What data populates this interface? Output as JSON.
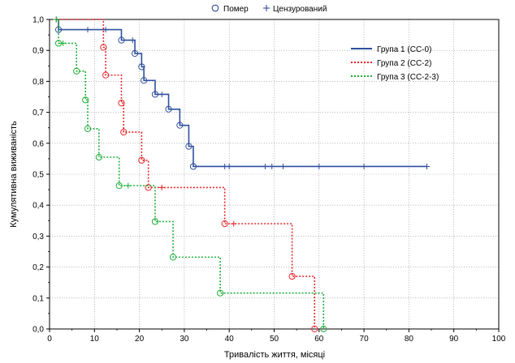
{
  "chart_data": {
    "type": "line",
    "step": true,
    "xlabel": "Тривалість життя, місяці",
    "ylabel": "Кумулятивна виживаність",
    "xlim": [
      0,
      100
    ],
    "ylim": [
      0,
      1
    ],
    "xticks": [
      "0",
      "10",
      "20",
      "30",
      "40",
      "50",
      "60",
      "70",
      "80",
      "90",
      "100"
    ],
    "yticks": [
      "0,0",
      "0,1",
      "0,2",
      "0,3",
      "0,4",
      "0,5",
      "0,6",
      "0,7",
      "0,8",
      "0,9",
      "1,0"
    ],
    "grid": true,
    "top_legend": {
      "death_label": "Помер",
      "censored_label": "Цензурований"
    },
    "legend_position": "top-right",
    "series": [
      {
        "name": "Група 1 (СС-0)",
        "color": "#2f4f9e",
        "dash": "solid",
        "start": 1.0,
        "steps": [
          [
            2,
            0.967
          ],
          [
            16,
            0.933
          ],
          [
            19,
            0.89
          ],
          [
            20.5,
            0.847
          ],
          [
            21,
            0.803
          ],
          [
            23.5,
            0.758
          ],
          [
            26.5,
            0.71
          ],
          [
            29,
            0.658
          ],
          [
            31,
            0.59
          ],
          [
            32,
            0.525
          ]
        ],
        "end_x": 84,
        "censored": [
          [
            1.5,
            1.0
          ],
          [
            8.5,
            0.967
          ],
          [
            12.5,
            0.967
          ],
          [
            18.5,
            0.933
          ],
          [
            25,
            0.758
          ],
          [
            39,
            0.525
          ],
          [
            40,
            0.525
          ],
          [
            48,
            0.525
          ],
          [
            49.5,
            0.525
          ],
          [
            52,
            0.525
          ],
          [
            60,
            0.525
          ],
          [
            70,
            0.525
          ],
          [
            84,
            0.525
          ]
        ]
      },
      {
        "name": "Група 2 (СС-2)",
        "color": "#e8262b",
        "dash": "dotted",
        "start": 1.0,
        "steps": [
          [
            12,
            0.91
          ],
          [
            12.5,
            0.82
          ],
          [
            16,
            0.73
          ],
          [
            16.5,
            0.636
          ],
          [
            20.5,
            0.545
          ],
          [
            22,
            0.457
          ],
          [
            39,
            0.34
          ],
          [
            54,
            0.17
          ],
          [
            59,
            0.0
          ]
        ],
        "end_x": 59,
        "censored": [
          [
            1.5,
            1.0
          ],
          [
            25,
            0.457
          ],
          [
            41,
            0.34
          ]
        ]
      },
      {
        "name": "Група 3 (СС-2-3)",
        "color": "#1fae3a",
        "dash": "dotted",
        "start": 1.0,
        "steps": [
          [
            2,
            0.923
          ],
          [
            6,
            0.833
          ],
          [
            8,
            0.74
          ],
          [
            8.5,
            0.647
          ],
          [
            11,
            0.555
          ],
          [
            15.5,
            0.463
          ],
          [
            23.5,
            0.347
          ],
          [
            27.5,
            0.232
          ],
          [
            38,
            0.116
          ],
          [
            61,
            0.0
          ]
        ],
        "end_x": 61,
        "censored": [
          [
            1.5,
            1.0
          ],
          [
            3,
            0.923
          ],
          [
            17.5,
            0.463
          ]
        ]
      }
    ]
  }
}
